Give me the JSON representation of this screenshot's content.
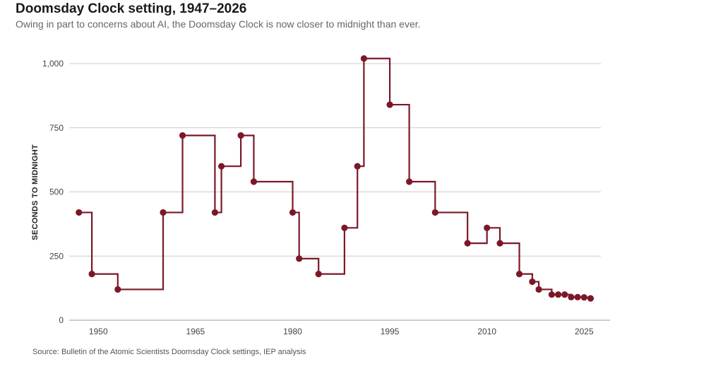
{
  "header": {
    "title": "Doomsday Clock setting, 1947–2026",
    "subtitle": "Owing in part to concerns about AI, the Doomsday Clock is now closer to midnight than ever."
  },
  "footer": {
    "source": "Source: Bulletin of the Atomic Scientists Doomsday Clock settings, IEP analysis"
  },
  "colors": {
    "series": "#7b1828",
    "grid": "#cccccc",
    "axis": "#999999"
  },
  "chart_data": {
    "type": "line",
    "step": "post",
    "title": "Doomsday Clock setting, 1947–2026",
    "xlabel": "",
    "ylabel": "SECONDS TO MIDNIGHT",
    "xlim": [
      1945.5,
      2029
    ],
    "ylim": [
      0,
      1000
    ],
    "grid": true,
    "xticks": [
      1950,
      1965,
      1980,
      1995,
      2010,
      2025
    ],
    "yticks": [
      0,
      250,
      500,
      750,
      1000
    ],
    "ytick_labels": [
      "0",
      "250",
      "500",
      "750",
      "1,000"
    ],
    "x": [
      1947,
      1949,
      1953,
      1960,
      1963,
      1968,
      1969,
      1972,
      1974,
      1980,
      1981,
      1984,
      1988,
      1990,
      1991,
      1995,
      1998,
      2002,
      2007,
      2010,
      2012,
      2015,
      2017,
      2018,
      2020,
      2021,
      2022,
      2023,
      2024,
      2025,
      2026
    ],
    "values": [
      420,
      180,
      120,
      420,
      720,
      420,
      600,
      720,
      540,
      420,
      240,
      180,
      360,
      600,
      1020,
      840,
      540,
      420,
      300,
      360,
      300,
      180,
      150,
      120,
      100,
      100,
      100,
      90,
      90,
      89,
      85
    ],
    "x_end": 2026
  }
}
